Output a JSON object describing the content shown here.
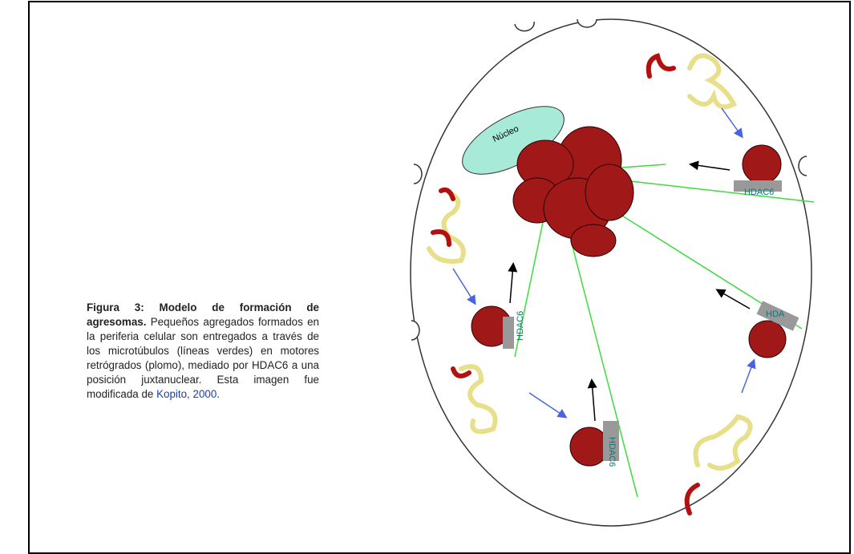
{
  "caption": {
    "heading": "Figura 3: Modelo de formación de agresomas.",
    "body": " Pequeños agregados formados en la periferia celular son entregados a través de los microtúbulos (líneas verdes) en motores retrógrados (plomo), mediado por HDAC6 a una posición juxtanuclear. Esta imagen fue modificada de ",
    "link": "Kopito, 2000",
    "end": "."
  },
  "diagram": {
    "nucleus": "Núcleo",
    "labels": [
      "HDAC6",
      "HDAC6",
      "HDAC6",
      "HDA"
    ]
  }
}
